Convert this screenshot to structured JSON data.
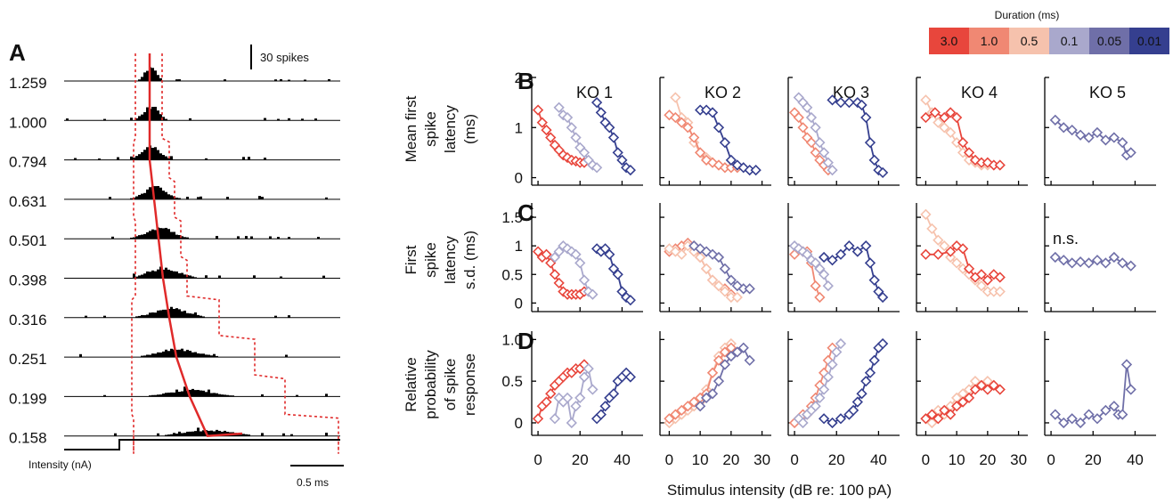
{
  "panel_a": {
    "label": "A",
    "scale_bar_label": "30 spikes",
    "time_bar_label": "0.5 ms",
    "stimulus_label": "Intensity (nA)",
    "intensity_labels": [
      "1.259",
      "1.000",
      "0.794",
      "0.631",
      "0.501",
      "0.398",
      "0.316",
      "0.251",
      "0.199",
      "0.158"
    ]
  },
  "legend": {
    "title": "Duration (ms)",
    "items": [
      {
        "label": "3.0",
        "color": "#e8463c"
      },
      {
        "label": "1.0",
        "color": "#f08873"
      },
      {
        "label": "0.5",
        "color": "#f6c2ad"
      },
      {
        "label": "0.1",
        "color": "#a9a8cc"
      },
      {
        "label": "0.05",
        "color": "#6f6fa8"
      },
      {
        "label": "0.01",
        "color": "#353f8f"
      }
    ]
  },
  "row_labels": {
    "B": "B",
    "C": "C",
    "D": "D",
    "b_ylabel": [
      "Mean first",
      "spike",
      "latency",
      "(ms)"
    ],
    "c_ylabel": [
      "First",
      "spike",
      "latency",
      "s.d. (ms)"
    ],
    "d_ylabel": [
      "Relative",
      "probability",
      "of spike",
      "response"
    ]
  },
  "column_titles": [
    "KO 1",
    "KO 2",
    "KO 3",
    "KO 4",
    "KO 5"
  ],
  "annotation_ko5_c": "n.s.",
  "xlabel": "Stimulus intensity (dB re: 100 pA)",
  "b_ticks": [
    "0",
    "1",
    "2"
  ],
  "c_ticks": [
    "0",
    "0.5",
    "1",
    "1.5"
  ],
  "d_ticks": [
    "0",
    "0.5",
    "1.0"
  ],
  "x_ticks": [
    [
      "0",
      "20",
      "40"
    ],
    [
      "0",
      "10",
      "20",
      "30"
    ],
    [
      "0",
      "20",
      "40"
    ],
    [
      "0",
      "10",
      "20",
      "30"
    ],
    [
      "0",
      "20",
      "40"
    ]
  ],
  "chart_data": {
    "type": "line",
    "xlim": [
      [
        -3,
        50
      ],
      [
        -3,
        33
      ],
      [
        -3,
        50
      ],
      [
        -3,
        33
      ],
      [
        -3,
        50
      ]
    ],
    "ylim": {
      "B": [
        -0.15,
        2.0
      ],
      "C": [
        -0.15,
        1.75
      ],
      "D": [
        -0.15,
        1.1
      ]
    },
    "series": [
      {
        "ko": 1,
        "row": "B",
        "color": "#e8463c",
        "x": [
          0,
          2,
          4,
          6,
          8,
          10,
          12,
          14,
          16,
          18,
          20,
          22
        ],
        "y": [
          1.35,
          1.1,
          0.95,
          0.8,
          0.65,
          0.55,
          0.45,
          0.4,
          0.35,
          0.33,
          0.3,
          0.3
        ]
      },
      {
        "ko": 1,
        "row": "B",
        "color": "#a9a8cc",
        "x": [
          10,
          12,
          14,
          16,
          18,
          20,
          22,
          24,
          26,
          28
        ],
        "y": [
          1.4,
          1.25,
          1.2,
          1.0,
          0.8,
          0.6,
          0.5,
          0.35,
          0.25,
          0.2
        ]
      },
      {
        "ko": 1,
        "row": "B",
        "color": "#353f8f",
        "x": [
          28,
          30,
          32,
          34,
          36,
          38,
          40,
          42,
          44
        ],
        "y": [
          1.5,
          1.3,
          1.1,
          1.0,
          0.8,
          0.5,
          0.35,
          0.2,
          0.15
        ]
      },
      {
        "ko": 2,
        "row": "B",
        "color": "#f6c2ad",
        "x": [
          2,
          4,
          6,
          8,
          10,
          12,
          14,
          16,
          18,
          20
        ],
        "y": [
          1.6,
          1.2,
          1.1,
          0.7,
          0.5,
          0.4,
          0.3,
          0.25,
          0.2,
          0.2
        ]
      },
      {
        "ko": 2,
        "row": "B",
        "color": "#f08873",
        "x": [
          0,
          2,
          4,
          6,
          8,
          10,
          12,
          14,
          16,
          18,
          20,
          22
        ],
        "y": [
          1.25,
          1.2,
          1.1,
          1.0,
          0.8,
          0.5,
          0.35,
          0.3,
          0.25,
          0.2,
          0.2,
          0.2
        ]
      },
      {
        "ko": 2,
        "row": "B",
        "color": "#353f8f",
        "x": [
          10,
          12,
          14,
          16,
          18,
          20,
          22,
          24,
          26,
          28
        ],
        "y": [
          1.35,
          1.35,
          1.3,
          1.0,
          0.7,
          0.35,
          0.25,
          0.2,
          0.15,
          0.15
        ]
      },
      {
        "ko": 3,
        "row": "B",
        "color": "#f08873",
        "x": [
          0,
          2,
          4,
          6,
          8,
          10,
          12,
          14,
          16
        ],
        "y": [
          1.3,
          1.2,
          1.0,
          0.8,
          0.7,
          0.5,
          0.35,
          0.25,
          0.15
        ]
      },
      {
        "ko": 3,
        "row": "B",
        "color": "#a9a8cc",
        "x": [
          2,
          4,
          6,
          8,
          10,
          12,
          14,
          16,
          18
        ],
        "y": [
          1.6,
          1.5,
          1.4,
          1.2,
          1.0,
          0.7,
          0.5,
          0.3,
          0.15
        ]
      },
      {
        "ko": 3,
        "row": "B",
        "color": "#353f8f",
        "x": [
          18,
          22,
          26,
          30,
          32,
          34,
          36,
          38,
          40,
          42
        ],
        "y": [
          1.55,
          1.5,
          1.5,
          1.5,
          1.45,
          1.2,
          0.7,
          0.35,
          0.15,
          0.1
        ]
      },
      {
        "ko": 4,
        "row": "B",
        "color": "#f6c2ad",
        "x": [
          0,
          2,
          4,
          6,
          8,
          10,
          12,
          14,
          16,
          18,
          20
        ],
        "y": [
          1.55,
          1.3,
          1.1,
          1.0,
          0.9,
          0.7,
          0.5,
          0.35,
          0.3,
          0.25,
          0.25
        ]
      },
      {
        "ko": 4,
        "row": "B",
        "color": "#e8463c",
        "x": [
          0,
          3,
          6,
          8,
          10,
          12,
          14,
          16,
          18,
          20,
          22,
          24
        ],
        "y": [
          1.2,
          1.3,
          1.2,
          1.3,
          1.2,
          0.7,
          0.5,
          0.35,
          0.3,
          0.3,
          0.25,
          0.25
        ]
      },
      {
        "ko": 5,
        "row": "B",
        "color": "#6f6fa8",
        "x": [
          2,
          6,
          10,
          14,
          18,
          22,
          26,
          30,
          34,
          36,
          38
        ],
        "y": [
          1.15,
          1.0,
          0.95,
          0.85,
          0.8,
          0.9,
          0.75,
          0.8,
          0.7,
          0.45,
          0.5
        ]
      },
      {
        "ko": 1,
        "row": "C",
        "color": "#e8463c",
        "x": [
          0,
          2,
          4,
          6,
          8,
          10,
          12,
          14,
          16,
          18,
          20,
          22
        ],
        "y": [
          0.9,
          0.8,
          0.85,
          0.7,
          0.5,
          0.35,
          0.2,
          0.15,
          0.15,
          0.15,
          0.15,
          0.2
        ]
      },
      {
        "ko": 1,
        "row": "C",
        "color": "#a9a8cc",
        "x": [
          8,
          10,
          12,
          14,
          16,
          18,
          20,
          22,
          24,
          26
        ],
        "y": [
          0.8,
          0.9,
          1.0,
          0.95,
          0.9,
          0.85,
          0.7,
          0.4,
          0.2,
          0.15
        ]
      },
      {
        "ko": 1,
        "row": "C",
        "color": "#353f8f",
        "x": [
          28,
          30,
          32,
          34,
          36,
          38,
          40,
          42,
          44
        ],
        "y": [
          0.95,
          0.9,
          0.95,
          0.85,
          0.6,
          0.5,
          0.2,
          0.1,
          0.05
        ]
      },
      {
        "ko": 2,
        "row": "C",
        "color": "#f08873",
        "x": [
          0,
          2,
          4,
          6,
          8,
          10,
          12,
          14,
          16,
          18,
          20
        ],
        "y": [
          0.9,
          0.95,
          1.0,
          1.05,
          1.0,
          0.8,
          0.6,
          0.4,
          0.3,
          0.25,
          0.15
        ]
      },
      {
        "ko": 2,
        "row": "C",
        "color": "#f6c2ad",
        "x": [
          0,
          2,
          4,
          6,
          8,
          10,
          12,
          14,
          16,
          18,
          20,
          22
        ],
        "y": [
          0.95,
          0.9,
          0.85,
          1.0,
          0.9,
          0.8,
          0.6,
          0.4,
          0.3,
          0.2,
          0.1,
          0.1
        ]
      },
      {
        "ko": 2,
        "row": "C",
        "color": "#6f6fa8",
        "x": [
          8,
          10,
          12,
          14,
          16,
          18,
          20,
          22,
          24,
          26
        ],
        "y": [
          1.0,
          0.95,
          0.9,
          0.85,
          0.8,
          0.6,
          0.4,
          0.3,
          0.25,
          0.25
        ]
      },
      {
        "ko": 3,
        "row": "C",
        "color": "#f08873",
        "x": [
          0,
          2,
          4,
          6,
          8,
          10,
          12
        ],
        "y": [
          0.85,
          0.95,
          0.9,
          0.9,
          0.7,
          0.3,
          0.1
        ]
      },
      {
        "ko": 3,
        "row": "C",
        "color": "#a9a8cc",
        "x": [
          0,
          2,
          4,
          6,
          8,
          10,
          12,
          14,
          16
        ],
        "y": [
          1.0,
          0.95,
          0.9,
          0.85,
          0.75,
          0.7,
          0.6,
          0.5,
          0.3
        ]
      },
      {
        "ko": 3,
        "row": "C",
        "color": "#353f8f",
        "x": [
          14,
          18,
          22,
          26,
          30,
          34,
          36,
          38,
          40,
          42
        ],
        "y": [
          0.8,
          0.75,
          0.85,
          1.0,
          0.9,
          1.0,
          0.7,
          0.4,
          0.2,
          0.1
        ]
      },
      {
        "ko": 4,
        "row": "C",
        "color": "#f6c2ad",
        "x": [
          0,
          2,
          4,
          6,
          8,
          10,
          12,
          14,
          16,
          18,
          20,
          22,
          24
        ],
        "y": [
          1.55,
          1.3,
          1.1,
          1.0,
          0.8,
          0.7,
          0.6,
          0.5,
          0.4,
          0.3,
          0.2,
          0.2,
          0.2
        ]
      },
      {
        "ko": 4,
        "row": "C",
        "color": "#e8463c",
        "x": [
          0,
          4,
          8,
          10,
          12,
          14,
          16,
          18,
          20,
          22,
          24
        ],
        "y": [
          0.85,
          0.85,
          0.9,
          1.0,
          0.95,
          0.6,
          0.45,
          0.5,
          0.4,
          0.5,
          0.45
        ]
      },
      {
        "ko": 5,
        "row": "C",
        "color": "#6f6fa8",
        "x": [
          2,
          6,
          10,
          14,
          18,
          22,
          26,
          30,
          34,
          38
        ],
        "y": [
          0.8,
          0.75,
          0.7,
          0.72,
          0.7,
          0.75,
          0.7,
          0.8,
          0.7,
          0.65
        ]
      },
      {
        "ko": 1,
        "row": "D",
        "color": "#e8463c",
        "x": [
          0,
          2,
          4,
          6,
          8,
          10,
          12,
          14,
          16,
          18,
          20,
          22
        ],
        "y": [
          0.05,
          0.2,
          0.25,
          0.35,
          0.45,
          0.5,
          0.55,
          0.6,
          0.6,
          0.65,
          0.65,
          0.7
        ]
      },
      {
        "ko": 1,
        "row": "D",
        "color": "#a9a8cc",
        "x": [
          8,
          10,
          12,
          14,
          16,
          18,
          20,
          22,
          24,
          26
        ],
        "y": [
          0.05,
          0.3,
          0.25,
          0.3,
          0.0,
          0.2,
          0.3,
          0.55,
          0.65,
          0.4
        ]
      },
      {
        "ko": 1,
        "row": "D",
        "color": "#353f8f",
        "x": [
          28,
          30,
          32,
          34,
          36,
          38,
          40,
          42,
          44
        ],
        "y": [
          0.05,
          0.1,
          0.2,
          0.3,
          0.35,
          0.5,
          0.55,
          0.6,
          0.55
        ]
      },
      {
        "ko": 2,
        "row": "D",
        "color": "#f6c2ad",
        "x": [
          0,
          2,
          4,
          6,
          8,
          10,
          12,
          14,
          16,
          18,
          20
        ],
        "y": [
          0.0,
          0.05,
          0.1,
          0.15,
          0.2,
          0.25,
          0.4,
          0.6,
          0.8,
          0.9,
          0.95
        ]
      },
      {
        "ko": 2,
        "row": "D",
        "color": "#f08873",
        "x": [
          0,
          2,
          4,
          6,
          8,
          10,
          12,
          14,
          16,
          18,
          20,
          22
        ],
        "y": [
          0.05,
          0.1,
          0.15,
          0.2,
          0.25,
          0.3,
          0.35,
          0.6,
          0.75,
          0.85,
          0.9,
          0.85
        ]
      },
      {
        "ko": 2,
        "row": "D",
        "color": "#6f6fa8",
        "x": [
          10,
          12,
          14,
          16,
          18,
          20,
          22,
          24,
          26
        ],
        "y": [
          0.2,
          0.3,
          0.35,
          0.5,
          0.7,
          0.8,
          0.85,
          0.9,
          0.75
        ]
      },
      {
        "ko": 3,
        "row": "D",
        "color": "#f08873",
        "x": [
          0,
          2,
          4,
          6,
          8,
          10,
          12,
          14,
          16,
          18
        ],
        "y": [
          0.0,
          0.05,
          0.1,
          0.1,
          0.2,
          0.3,
          0.45,
          0.6,
          0.75,
          0.9
        ]
      },
      {
        "ko": 3,
        "row": "D",
        "color": "#a9a8cc",
        "x": [
          2,
          4,
          6,
          8,
          10,
          12,
          14,
          16,
          18,
          20,
          22
        ],
        "y": [
          0.05,
          0.0,
          0.1,
          0.15,
          0.2,
          0.3,
          0.4,
          0.55,
          0.7,
          0.85,
          0.95
        ]
      },
      {
        "ko": 3,
        "row": "D",
        "color": "#353f8f",
        "x": [
          14,
          18,
          22,
          26,
          28,
          30,
          32,
          34,
          36,
          38,
          40,
          42
        ],
        "y": [
          0.05,
          0.0,
          0.05,
          0.1,
          0.15,
          0.25,
          0.35,
          0.5,
          0.6,
          0.75,
          0.9,
          0.95
        ]
      },
      {
        "ko": 4,
        "row": "D",
        "color": "#f6c2ad",
        "x": [
          0,
          2,
          4,
          6,
          8,
          10,
          12,
          14,
          16,
          18,
          20,
          22,
          24
        ],
        "y": [
          0.05,
          0.0,
          0.15,
          0.1,
          0.2,
          0.3,
          0.35,
          0.4,
          0.5,
          0.45,
          0.5,
          0.45,
          0.4
        ]
      },
      {
        "ko": 4,
        "row": "D",
        "color": "#e8463c",
        "x": [
          0,
          2,
          4,
          6,
          8,
          10,
          12,
          14,
          16,
          18,
          20,
          22,
          24
        ],
        "y": [
          0.05,
          0.1,
          0.05,
          0.15,
          0.1,
          0.2,
          0.25,
          0.3,
          0.4,
          0.45,
          0.4,
          0.45,
          0.4
        ]
      },
      {
        "ko": 5,
        "row": "D",
        "color": "#6f6fa8",
        "x": [
          2,
          6,
          10,
          14,
          18,
          22,
          26,
          30,
          32,
          34,
          36,
          38
        ],
        "y": [
          0.1,
          0.0,
          0.05,
          0.0,
          0.1,
          0.05,
          0.15,
          0.2,
          0.1,
          0.1,
          0.7,
          0.4
        ]
      }
    ]
  }
}
